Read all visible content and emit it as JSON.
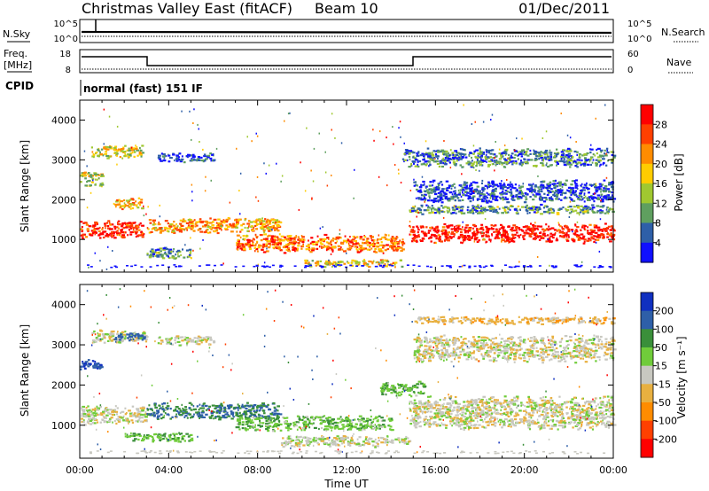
{
  "header": {
    "station": "Christmas Valley East (fitACF)",
    "beam": "Beam 10",
    "date": "01/Dec/2011"
  },
  "status_panel": {
    "nsky_label": "N.Sky",
    "nsky_ticks": [
      "10^5",
      "10^0"
    ],
    "nsearch_label": "N.Search",
    "nsearch_ticks": [
      "10^5",
      "10^0"
    ],
    "freq_label_line1": "Freq.",
    "freq_label_line2": "[MHz]",
    "freq_ticks": [
      "18",
      "8"
    ],
    "nave_label": "Nave",
    "nave_ticks": [
      "60",
      "0"
    ],
    "cpid_label": "CPID",
    "cpid_text": "normal (fast) 151 IF"
  },
  "chart_data": [
    {
      "type": "heatmap",
      "name": "power",
      "ylabel": "Slant Range [km]",
      "ylim": [
        180,
        4500
      ],
      "yticks": [
        1000,
        2000,
        3000,
        4000
      ],
      "xlabel": "",
      "xlim_hours": [
        0,
        24
      ],
      "colorbar_label": "Power [dB]",
      "colorbar_ticks": [
        "28",
        "24",
        "20",
        "16",
        "12",
        "8",
        "4"
      ],
      "colors": [
        "#ff0000",
        "#ff4000",
        "#ff8c00",
        "#ffcc00",
        "#a0c830",
        "#5f9f5f",
        "#2e5fa8",
        "#1010ff"
      ],
      "features": [
        {
          "hour_start": 0.0,
          "hour_end": 2.8,
          "range_km": 1250,
          "width_km": 500,
          "level": 0.9
        },
        {
          "hour_start": 1.5,
          "hour_end": 2.8,
          "range_km": 1900,
          "width_km": 300,
          "level": 0.6
        },
        {
          "hour_start": 0.0,
          "hour_end": 1.0,
          "range_km": 2500,
          "width_km": 400,
          "level": 0.5
        },
        {
          "hour_start": 0.5,
          "hour_end": 2.8,
          "range_km": 3200,
          "width_km": 350,
          "level": 0.5
        },
        {
          "hour_start": 3.5,
          "hour_end": 6.0,
          "range_km": 3050,
          "width_km": 250,
          "level": 0.15
        },
        {
          "hour_start": 3.0,
          "hour_end": 9.0,
          "range_km": 1350,
          "width_km": 400,
          "level": 0.65
        },
        {
          "hour_start": 3.0,
          "hour_end": 5.0,
          "range_km": 650,
          "width_km": 300,
          "level": 0.3
        },
        {
          "hour_start": 7.0,
          "hour_end": 14.5,
          "range_km": 900,
          "width_km": 500,
          "level": 0.75
        },
        {
          "hour_start": 10.0,
          "hour_end": 14.5,
          "range_km": 400,
          "width_km": 200,
          "level": 0.55
        },
        {
          "hour_start": 14.8,
          "hour_end": 24.0,
          "range_km": 1150,
          "width_km": 500,
          "level": 0.95
        },
        {
          "hour_start": 14.8,
          "hour_end": 24.0,
          "range_km": 1750,
          "width_km": 250,
          "level": 0.3
        },
        {
          "hour_start": 15.0,
          "hour_end": 24.0,
          "range_km": 2200,
          "width_km": 600,
          "level": 0.15
        },
        {
          "hour_start": 14.5,
          "hour_end": 24.0,
          "range_km": 3050,
          "width_km": 500,
          "level": 0.25
        }
      ]
    },
    {
      "type": "heatmap",
      "name": "velocity",
      "ylabel": "Slant Range [km]",
      "ylim": [
        180,
        4500
      ],
      "yticks": [
        1000,
        2000,
        3000,
        4000
      ],
      "xlabel": "Time UT",
      "xticks": [
        "00:00",
        "04:00",
        "08:00",
        "12:00",
        "16:00",
        "20:00",
        "00:00"
      ],
      "xlim_hours": [
        0,
        24
      ],
      "colorbar_label": "Velocity [m s⁻¹]",
      "colorbar_ticks": [
        "200",
        "100",
        "50",
        "15",
        "-15",
        "-50",
        "-100",
        "-200"
      ],
      "colors": [
        "#1030c0",
        "#2e5fa8",
        "#3a8f3a",
        "#70cc3a",
        "#c8c8c0",
        "#e8b040",
        "#ff8c00",
        "#ff4000",
        "#ff0000"
      ],
      "features": [
        {
          "hour_start": 0.0,
          "hour_end": 3.0,
          "range_km": 1250,
          "width_km": 500,
          "vel": 0
        },
        {
          "hour_start": 0.0,
          "hour_end": 1.0,
          "range_km": 2500,
          "width_km": 300,
          "vel": 200
        },
        {
          "hour_start": 0.5,
          "hour_end": 3.0,
          "range_km": 3200,
          "width_km": 350,
          "vel": 0
        },
        {
          "hour_start": 1.5,
          "hour_end": 3.0,
          "range_km": 3200,
          "width_km": 200,
          "vel": 150
        },
        {
          "hour_start": 3.5,
          "hour_end": 6.0,
          "range_km": 3100,
          "width_km": 250,
          "vel": 0
        },
        {
          "hour_start": 3.0,
          "hour_end": 9.0,
          "range_km": 1350,
          "width_km": 450,
          "vel": 100
        },
        {
          "hour_start": 7.0,
          "hour_end": 14.0,
          "range_km": 1050,
          "width_km": 400,
          "vel": 40
        },
        {
          "hour_start": 2.0,
          "hour_end": 5.0,
          "range_km": 700,
          "width_km": 250,
          "vel": 50
        },
        {
          "hour_start": 9.0,
          "hour_end": 14.8,
          "range_km": 600,
          "width_km": 300,
          "vel": 0
        },
        {
          "hour_start": 13.5,
          "hour_end": 15.5,
          "range_km": 1900,
          "width_km": 400,
          "vel": 40
        },
        {
          "hour_start": 14.8,
          "hour_end": 24.0,
          "range_km": 1300,
          "width_km": 900,
          "vel": 0
        },
        {
          "hour_start": 15.0,
          "hour_end": 24.0,
          "range_km": 2900,
          "width_km": 700,
          "vel": -5
        },
        {
          "hour_start": 15.0,
          "hour_end": 24.0,
          "range_km": 3600,
          "width_km": 200,
          "vel": -30
        }
      ]
    }
  ]
}
